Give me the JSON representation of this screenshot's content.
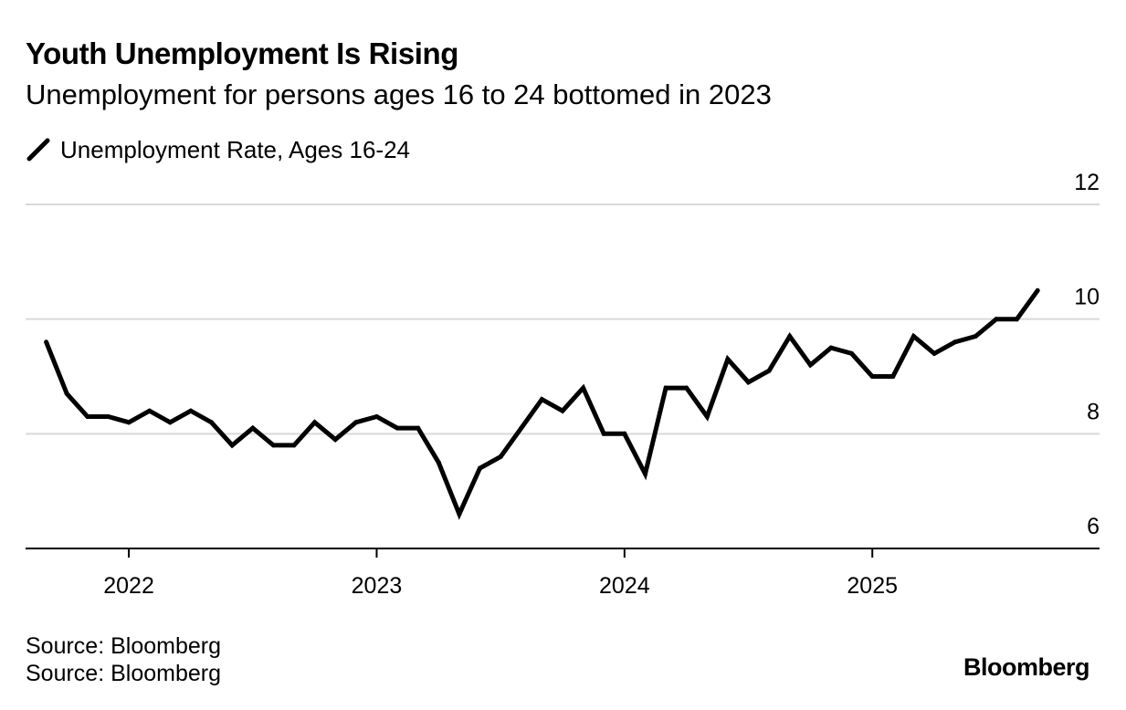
{
  "header": {
    "title": "Youth Unemployment Is Rising",
    "subtitle": "Unemployment for persons ages 16 to 24 bottomed in 2023"
  },
  "legend": {
    "label": "Unemployment Rate, Ages 16-24",
    "icon": "line-swatch-icon"
  },
  "footer": {
    "source_1": "Source: Bloomberg",
    "source_2": "Source: Bloomberg",
    "brand": "Bloomberg"
  },
  "colors": {
    "series": "#000000",
    "grid": "#d9d9d9",
    "axis": "#000000"
  },
  "chart_data": {
    "type": "line",
    "title": "Youth Unemployment Is Rising",
    "subtitle": "Unemployment for persons ages 16 to 24 bottomed in 2023",
    "xlabel": "",
    "ylabel": "",
    "x_range": [
      "2021-08",
      "2025-12"
    ],
    "ylim": [
      6,
      12
    ],
    "y_ticks": [
      6,
      8,
      10,
      12
    ],
    "y_axis_side": "right",
    "x_ticks": [
      {
        "date": "2022-01",
        "label": "2022"
      },
      {
        "date": "2023-01",
        "label": "2023"
      },
      {
        "date": "2024-01",
        "label": "2024"
      },
      {
        "date": "2025-01",
        "label": "2025"
      }
    ],
    "grid": true,
    "legend_position": "top-left",
    "series": [
      {
        "name": "Unemployment Rate, Ages 16-24",
        "x": [
          "2021-09",
          "2021-10",
          "2021-11",
          "2021-12",
          "2022-01",
          "2022-02",
          "2022-03",
          "2022-04",
          "2022-05",
          "2022-06",
          "2022-07",
          "2022-08",
          "2022-09",
          "2022-10",
          "2022-11",
          "2022-12",
          "2023-01",
          "2023-02",
          "2023-03",
          "2023-04",
          "2023-05",
          "2023-06",
          "2023-07",
          "2023-08",
          "2023-09",
          "2023-10",
          "2023-11",
          "2023-12",
          "2024-01",
          "2024-02",
          "2024-03",
          "2024-04",
          "2024-05",
          "2024-06",
          "2024-07",
          "2024-08",
          "2024-09",
          "2024-10",
          "2024-11",
          "2024-12",
          "2025-01",
          "2025-02",
          "2025-03",
          "2025-04",
          "2025-05",
          "2025-06",
          "2025-07",
          "2025-08",
          "2025-09"
        ],
        "values": [
          9.6,
          8.7,
          8.3,
          8.3,
          8.2,
          8.4,
          8.2,
          8.4,
          8.2,
          7.8,
          8.1,
          7.8,
          7.8,
          8.2,
          7.9,
          8.2,
          8.3,
          8.1,
          8.1,
          7.5,
          6.6,
          7.4,
          7.6,
          8.1,
          8.6,
          8.4,
          8.8,
          8.0,
          8.0,
          7.3,
          8.8,
          8.8,
          8.3,
          9.3,
          8.9,
          9.1,
          9.7,
          9.2,
          9.5,
          9.4,
          9.0,
          9.0,
          9.7,
          9.4,
          9.6,
          9.7,
          10.0,
          10.0,
          10.5
        ]
      }
    ]
  }
}
